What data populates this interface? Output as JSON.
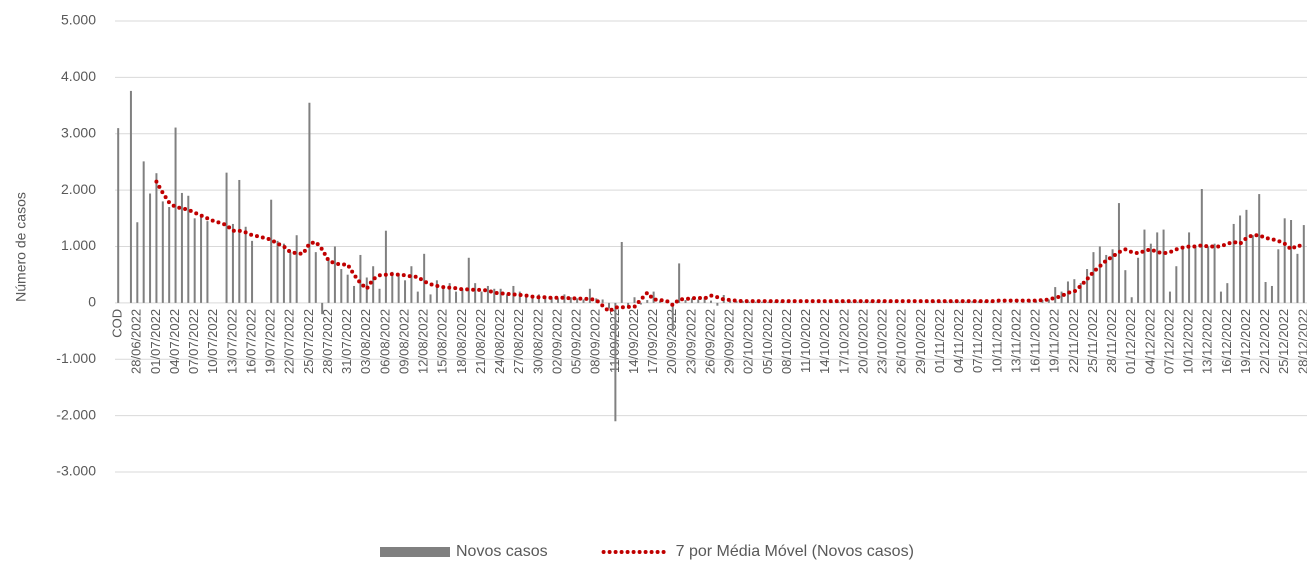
{
  "chart_data": {
    "type": "bar",
    "y_label": "Número de casos",
    "categories": [
      "COD",
      null,
      null,
      "28/06/2022",
      null,
      null,
      "01/07/2022",
      null,
      null,
      "04/07/2022",
      null,
      null,
      "07/07/2022",
      null,
      null,
      "10/07/2022",
      null,
      null,
      "13/07/2022",
      null,
      null,
      "16/07/2022",
      null,
      null,
      "19/07/2022",
      null,
      null,
      "22/07/2022",
      null,
      null,
      "25/07/2022",
      null,
      null,
      "28/07/2022",
      null,
      null,
      "31/07/2022",
      null,
      null,
      "03/08/2022",
      null,
      null,
      "06/08/2022",
      null,
      null,
      "09/08/2022",
      null,
      null,
      "12/08/2022",
      null,
      null,
      "15/08/2022",
      null,
      null,
      "18/08/2022",
      null,
      null,
      "21/08/2022",
      null,
      null,
      "24/08/2022",
      null,
      null,
      "27/08/2022",
      null,
      null,
      "30/08/2022",
      null,
      null,
      "02/09/2022",
      null,
      null,
      "05/09/2022",
      null,
      null,
      "08/09/2022",
      null,
      null,
      "11/09/2022",
      null,
      null,
      "14/09/2022",
      null,
      null,
      "17/09/2022",
      null,
      null,
      "20/09/2022",
      null,
      null,
      "23/09/2022",
      null,
      null,
      "26/09/2022",
      null,
      null,
      "29/09/2022",
      null,
      null,
      "02/10/2022",
      null,
      null,
      "05/10/2022",
      null,
      null,
      "08/10/2022",
      null,
      null,
      "11/10/2022",
      null,
      null,
      "14/10/2022",
      null,
      null,
      "17/10/2022",
      null,
      null,
      "20/10/2022",
      null,
      null,
      "23/10/2022",
      null,
      null,
      "26/10/2022",
      null,
      null,
      "29/10/2022",
      null,
      null,
      "01/11/2022",
      null,
      null,
      "04/11/2022",
      null,
      null,
      "07/11/2022",
      null,
      null,
      "10/11/2022",
      null,
      null,
      "13/11/2022",
      null,
      null,
      "16/11/2022",
      null,
      null,
      "19/11/2022",
      null,
      null,
      "22/11/2022",
      null,
      null,
      "25/11/2022",
      null,
      null,
      "28/11/2022",
      null,
      null,
      "01/12/2022",
      null,
      null,
      "04/12/2022",
      null,
      null,
      "07/12/2022",
      null,
      null,
      "10/12/2022",
      null,
      null,
      "13/12/2022",
      null,
      null,
      "16/12/2022",
      null,
      null,
      "19/12/2022",
      null,
      null,
      "22/12/2022",
      null,
      null,
      "25/12/2022",
      null,
      null,
      "28/12/2022"
    ],
    "series": [
      {
        "name": "Novos casos",
        "type": "bar",
        "color": "#808080",
        "values": [
          3100,
          0,
          3760,
          1430,
          2510,
          1940,
          2300,
          1800,
          1700,
          3110,
          1950,
          1900,
          1500,
          1550,
          1450,
          0,
          0,
          2310,
          1400,
          2180,
          1350,
          1100,
          0,
          0,
          1830,
          1100,
          1050,
          900,
          1200,
          0,
          3550,
          900,
          -200,
          800,
          1000,
          600,
          500,
          300,
          850,
          450,
          650,
          250,
          1280,
          550,
          500,
          400,
          650,
          200,
          870,
          150,
          400,
          300,
          350,
          200,
          250,
          800,
          350,
          200,
          300,
          250,
          250,
          150,
          300,
          200,
          150,
          100,
          150,
          120,
          100,
          80,
          150,
          100,
          80,
          60,
          250,
          80,
          60,
          -100,
          -2100,
          1080,
          -50,
          100,
          -30,
          50,
          200,
          40,
          30,
          -500,
          700,
          50,
          80,
          60,
          100,
          40,
          -50,
          140,
          40,
          30,
          30,
          20,
          20,
          20,
          20,
          20,
          20,
          20,
          20,
          20,
          20,
          20,
          20,
          20,
          20,
          20,
          20,
          20,
          20,
          20,
          20,
          20,
          20,
          20,
          20,
          20,
          30,
          20,
          20,
          20,
          30,
          20,
          20,
          20,
          20,
          20,
          30,
          30,
          30,
          30,
          40,
          30,
          40,
          40,
          50,
          50,
          40,
          50,
          60,
          280,
          200,
          380,
          420,
          350,
          600,
          900,
          1000,
          850,
          950,
          1770,
          580,
          100,
          800,
          1300,
          1050,
          1250,
          1300,
          200,
          650,
          1000,
          1250,
          1000,
          2020,
          1000,
          1050,
          200,
          350,
          1400,
          1550,
          1650,
          1200,
          1930,
          370,
          300,
          950,
          1500,
          1470,
          870,
          1380
        ]
      },
      {
        "name": "7 por Média Móvel (Novos casos)",
        "type": "line",
        "color": "#c00000",
        "values": [
          null,
          null,
          null,
          null,
          null,
          null,
          2150,
          1950,
          1780,
          1700,
          1680,
          1650,
          1600,
          1550,
          1500,
          1450,
          1420,
          1380,
          1280,
          1280,
          1250,
          1200,
          1180,
          1150,
          1120,
          1050,
          1000,
          900,
          880,
          870,
          1050,
          1080,
          950,
          750,
          700,
          680,
          680,
          500,
          350,
          250,
          420,
          490,
          500,
          510,
          500,
          490,
          470,
          460,
          380,
          330,
          300,
          280,
          270,
          260,
          240,
          240,
          230,
          230,
          220,
          180,
          170,
          160,
          150,
          140,
          130,
          110,
          100,
          100,
          90,
          90,
          90,
          80,
          80,
          70,
          70,
          50,
          -50,
          -150,
          -80,
          -80,
          -70,
          -70,
          60,
          180,
          60,
          50,
          40,
          -40,
          60,
          70,
          80,
          90,
          80,
          130,
          100,
          60,
          50,
          40,
          30,
          30,
          30,
          30,
          30,
          30,
          30,
          30,
          30,
          30,
          30,
          30,
          30,
          30,
          30,
          30,
          30,
          30,
          30,
          30,
          30,
          30,
          30,
          30,
          30,
          30,
          30,
          30,
          30,
          30,
          30,
          30,
          30,
          30,
          30,
          30,
          30,
          30,
          30,
          30,
          40,
          40,
          40,
          40,
          40,
          40,
          40,
          50,
          60,
          90,
          120,
          180,
          200,
          300,
          420,
          550,
          650,
          750,
          820,
          900,
          950,
          900,
          880,
          920,
          950,
          900,
          880,
          900,
          950,
          980,
          1000,
          1000,
          1020,
          1000,
          1000,
          1000,
          1050,
          1080,
          1050,
          1150,
          1200,
          1200,
          1150,
          1130,
          1100,
          1050,
          950,
          1020,
          1000
        ]
      }
    ],
    "ylim": [
      -3000,
      5000
    ],
    "yticks": [
      {
        "value": -3000,
        "label": "-3.000"
      },
      {
        "value": -2000,
        "label": "-2.000"
      },
      {
        "value": -1000,
        "label": "-1.000"
      },
      0,
      {
        "value": 1000,
        "label": "1.000"
      },
      {
        "value": 2000,
        "label": "2.000"
      },
      {
        "value": 3000,
        "label": "3.000"
      },
      {
        "value": 4000,
        "label": "4.000"
      },
      {
        "value": 5000,
        "label": "5.000"
      }
    ],
    "grid": true,
    "legend": "bottom"
  }
}
